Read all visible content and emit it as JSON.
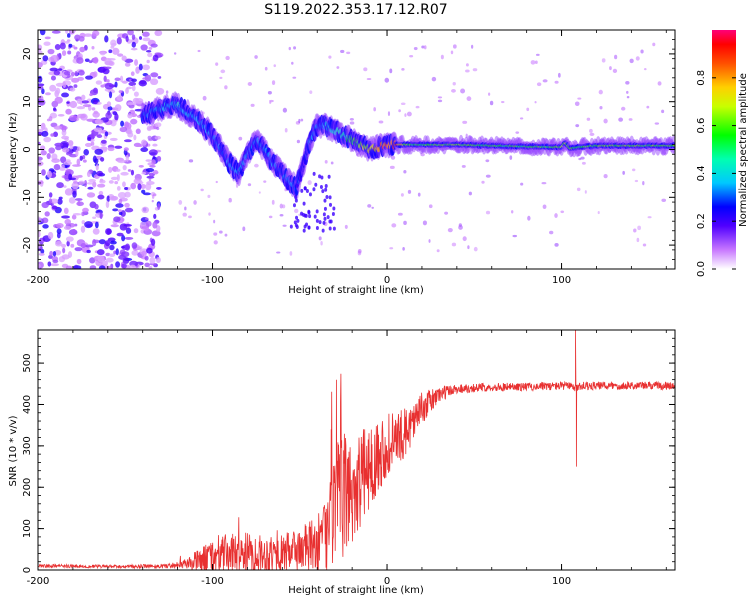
{
  "figure": {
    "title": "S119.2022.353.17.12.R07"
  },
  "chart_data": [
    {
      "type": "heatmap",
      "xlabel": "Height of straight line (km)",
      "ylabel": "Frequency (Hz)",
      "xlim": [
        -200,
        165
      ],
      "ylim": [
        -25,
        25
      ],
      "x_ticks": [
        -200,
        -100,
        0,
        100
      ],
      "x_tick_labels": [
        "-200",
        "-100",
        "0",
        "100"
      ],
      "y_ticks": [
        -20,
        -10,
        0,
        10,
        20
      ],
      "y_tick_labels": [
        "-20",
        "-10",
        "0",
        "10",
        "20"
      ],
      "colorbar": {
        "label": "Normalized spectral amplitude",
        "range": [
          0,
          1
        ],
        "ticks": [
          0,
          0.2,
          0.4,
          0.6,
          0.8
        ],
        "tick_labels": [
          "0.0",
          "0.2",
          "0.4",
          "0.6",
          "0.8"
        ]
      },
      "ridge": {
        "x": [
          -140,
          -130,
          -122,
          -115,
          -108,
          -100,
          -95,
          -90,
          -85,
          -80,
          -75,
          -70,
          -65,
          -60,
          -55,
          -52,
          -48,
          -44,
          -40,
          -35,
          -30,
          -25,
          -20,
          -15,
          -10,
          -5,
          0,
          5,
          10,
          20,
          40,
          60,
          80,
          100,
          102,
          105,
          110,
          120,
          140,
          165
        ],
        "y": [
          7,
          8.5,
          9.5,
          8,
          6,
          3,
          0,
          -3,
          -5,
          -1,
          2,
          0,
          -3,
          -5,
          -7,
          -8,
          -3,
          2,
          5,
          5,
          4,
          3,
          2,
          1,
          0,
          0.5,
          1,
          1,
          1,
          1,
          1,
          0.8,
          0.6,
          0.5,
          1.5,
          0.2,
          0.5,
          0.8,
          0.8,
          0.8
        ],
        "amplitude": [
          0.3,
          0.35,
          0.4,
          0.35,
          0.35,
          0.3,
          0.3,
          0.3,
          0.35,
          0.3,
          0.3,
          0.3,
          0.3,
          0.3,
          0.35,
          0.3,
          0.2,
          0.3,
          0.3,
          0.35,
          0.4,
          0.45,
          0.55,
          0.6,
          0.7,
          0.8,
          0.85,
          0.9,
          0.6,
          0.55,
          0.6,
          0.55,
          0.55,
          0.6,
          0.7,
          0.6,
          0.55,
          0.6,
          0.6,
          0.6
        ]
      },
      "noise_region": {
        "x_range": [
          -200,
          -140
        ],
        "y_range": [
          -25,
          25
        ],
        "amplitude_range": [
          0.05,
          0.25
        ]
      }
    },
    {
      "type": "line",
      "xlabel": "Height of straight line (km)",
      "ylabel": "SNR (10 * v/v)",
      "xlim": [
        -200,
        165
      ],
      "ylim": [
        0,
        580
      ],
      "x_ticks": [
        -200,
        -100,
        0,
        100
      ],
      "x_tick_labels": [
        "-200",
        "-100",
        "0",
        "100"
      ],
      "y_ticks": [
        0,
        100,
        200,
        300,
        400,
        500
      ],
      "y_tick_labels": [
        "0",
        "100",
        "200",
        "300",
        "400",
        "500"
      ],
      "color": "#e83030",
      "envelope": {
        "x": [
          -200,
          -150,
          -125,
          -115,
          -110,
          -100,
          -90,
          -80,
          -70,
          -60,
          -50,
          -40,
          -35,
          -30,
          -25,
          -20,
          -15,
          -10,
          -5,
          0,
          10,
          20,
          30,
          40,
          60,
          80,
          100,
          105,
          108,
          112,
          120,
          140,
          165
        ],
        "mean": [
          10,
          8,
          10,
          15,
          20,
          30,
          40,
          40,
          38,
          40,
          50,
          60,
          80,
          150,
          180,
          190,
          220,
          250,
          280,
          300,
          330,
          390,
          425,
          438,
          442,
          443,
          445,
          445,
          440,
          445,
          445,
          446,
          445
        ],
        "spread": [
          4,
          4,
          6,
          12,
          25,
          45,
          50,
          50,
          45,
          45,
          55,
          70,
          100,
          150,
          150,
          140,
          120,
          100,
          90,
          80,
          60,
          40,
          20,
          12,
          10,
          10,
          10,
          10,
          10,
          10,
          10,
          10,
          10
        ]
      },
      "spikes": [
        {
          "x": 108,
          "y": 580
        },
        {
          "x": 108.5,
          "y": 250
        },
        {
          "x": -29,
          "y": 460
        },
        {
          "x": -32,
          "y": 340
        }
      ]
    }
  ]
}
